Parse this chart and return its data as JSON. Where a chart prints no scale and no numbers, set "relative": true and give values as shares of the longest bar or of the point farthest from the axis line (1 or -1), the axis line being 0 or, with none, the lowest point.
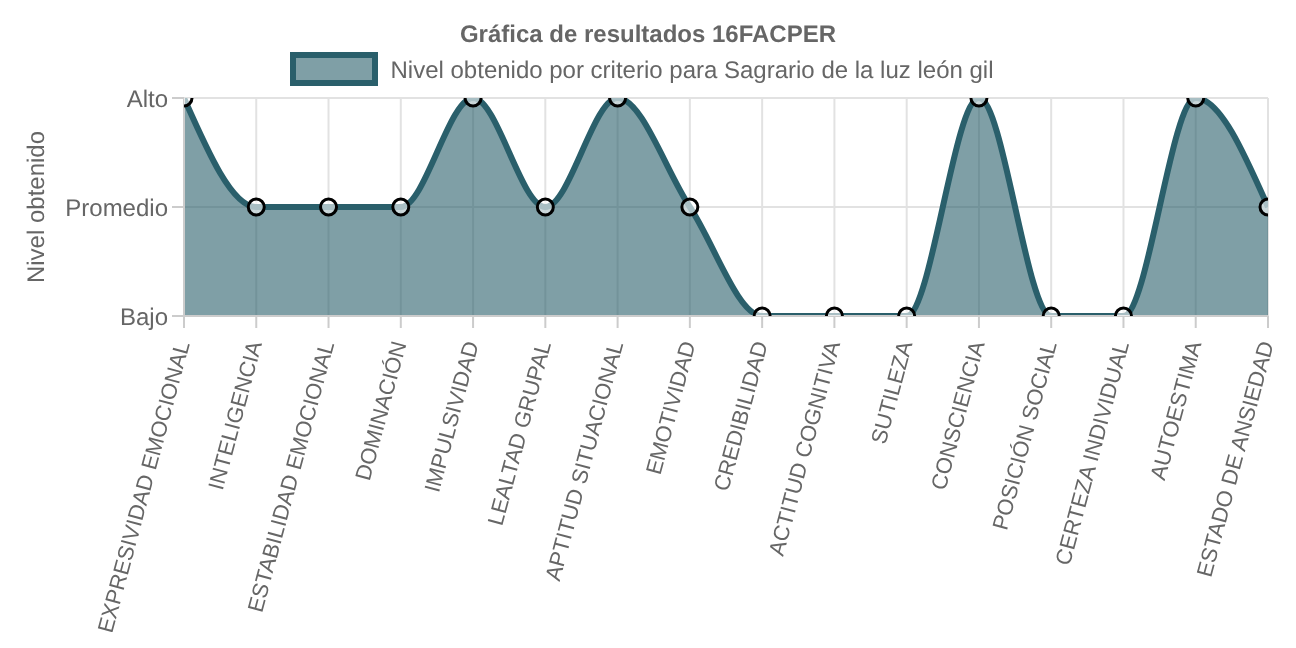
{
  "chart_data": {
    "type": "area",
    "title": "Gráfica de resultados 16FACPER",
    "ylabel": "Nivel obtenido",
    "categories": [
      "EXPRESIVIDAD EMOCIONAL",
      "INTELIGENCIA",
      "ESTABILIDAD EMOCIONAL",
      "DOMINACIÓN",
      "IMPULSIVIDAD",
      "LEALTAD GRUPAL",
      "APTITUD SITUACIONAL",
      "EMOTIVIDAD",
      "CREDIBILIDAD",
      "ACTITUD COGNITIVA",
      "SUTILEZA",
      "CONSCIENCIA",
      "POSICIÓN SOCIAL",
      "CERTEZA INDIVIDUAL",
      "AUTOESTIMA",
      "ESTADO DE ANSIEDAD"
    ],
    "y_categories": [
      "Alto",
      "Promedio",
      "Bajo"
    ],
    "series": [
      {
        "name": "Nivel obtenido por criterio para Sagrario de la luz león gil",
        "color": "#2a5f6b",
        "values": [
          1,
          0.5,
          0.5,
          0.5,
          1,
          0.5,
          1,
          0.5,
          0,
          0,
          0,
          1,
          0,
          0,
          1,
          0.5
        ]
      }
    ],
    "relative": true,
    "grid": true,
    "legend": "top",
    "marker": "circle"
  }
}
